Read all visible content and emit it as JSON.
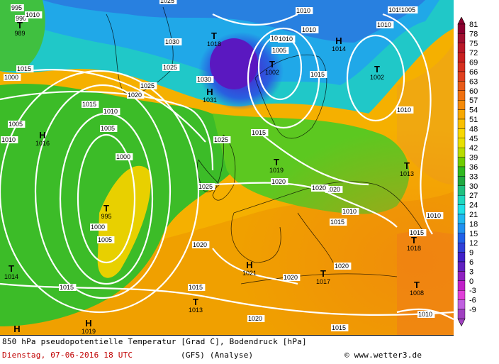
{
  "chart_data": {
    "type": "heatmap",
    "title": "850 hPa pseudopotentielle Temperatur [Grad C], Bodendruck [hPa]",
    "colorbar": {
      "ticks": [
        "81",
        "78",
        "75",
        "72",
        "69",
        "66",
        "63",
        "60",
        "57",
        "54",
        "51",
        "48",
        "45",
        "42",
        "39",
        "36",
        "33",
        "30",
        "27",
        "24",
        "21",
        "18",
        "15",
        "12",
        "9",
        "6",
        "3",
        "0",
        "-3",
        "-6",
        "-9"
      ],
      "colors": [
        "#8b0030",
        "#a01030",
        "#b81828",
        "#c82020",
        "#d63020",
        "#e04020",
        "#e85a18",
        "#f07010",
        "#f58a08",
        "#f8a800",
        "#fac000",
        "#f8d800",
        "#e8e000",
        "#b8dc00",
        "#70cc00",
        "#30b820",
        "#20a840",
        "#20c080",
        "#20d8c0",
        "#20e0e8",
        "#20b8f0",
        "#2090f0",
        "#2060e8",
        "#3040d8",
        "#4020c8",
        "#6020c0",
        "#9020c0",
        "#c020c8",
        "#e040d8",
        "#c060e0",
        "#a040c0"
      ]
    },
    "pressure_labels": [
      "995",
      "990",
      "1000",
      "1025",
      "1005",
      "1010",
      "1015",
      "1010",
      "1030",
      "1025",
      "1030",
      "1010",
      "1005",
      "1010",
      "1015",
      "1010",
      "1020",
      "1025",
      "1015",
      "1010",
      "1005",
      "1000",
      "1025",
      "1015",
      "1020",
      "1025",
      "1020",
      "1010",
      "1000",
      "1005",
      "1020",
      "1020",
      "1020",
      "1010",
      "1010",
      "1015",
      "1005",
      "1010",
      "1010",
      "1015",
      "1015",
      "1020",
      "1020",
      "1015",
      "1015",
      "1010",
      "1015"
    ],
    "pressure_centers": [
      {
        "type": "T",
        "value": "989"
      },
      {
        "type": "T",
        "value": "1018"
      },
      {
        "type": "T",
        "value": "1002"
      },
      {
        "type": "H",
        "value": "1014"
      },
      {
        "type": "T",
        "value": "1002"
      },
      {
        "type": "H",
        "value": "1031"
      },
      {
        "type": "H",
        "value": "1016"
      },
      {
        "type": "T",
        "value": "1019"
      },
      {
        "type": "T",
        "value": "1013"
      },
      {
        "type": "T",
        "value": "995"
      },
      {
        "type": "T",
        "value": "1018"
      },
      {
        "type": "T",
        "value": "1014"
      },
      {
        "type": "H",
        "value": "1021"
      },
      {
        "type": "T",
        "value": "1017"
      },
      {
        "type": "T",
        "value": "1008"
      },
      {
        "type": "T",
        "value": "1013"
      },
      {
        "type": "H",
        "value": "1019"
      },
      {
        "type": "H",
        "value": ""
      }
    ]
  },
  "footer": {
    "title": "850 hPa pseudopotentielle Temperatur [Grad C], Bodendruck [hPa]",
    "date": "Dienstag, 07-06-2016  18 UTC",
    "model": "(GFS)  (Analyse)",
    "credit": "© www.wetter3.de"
  },
  "colors": {
    "isobar": "#ffffff",
    "land_outline": "#000000",
    "date_text": "#c00000"
  }
}
